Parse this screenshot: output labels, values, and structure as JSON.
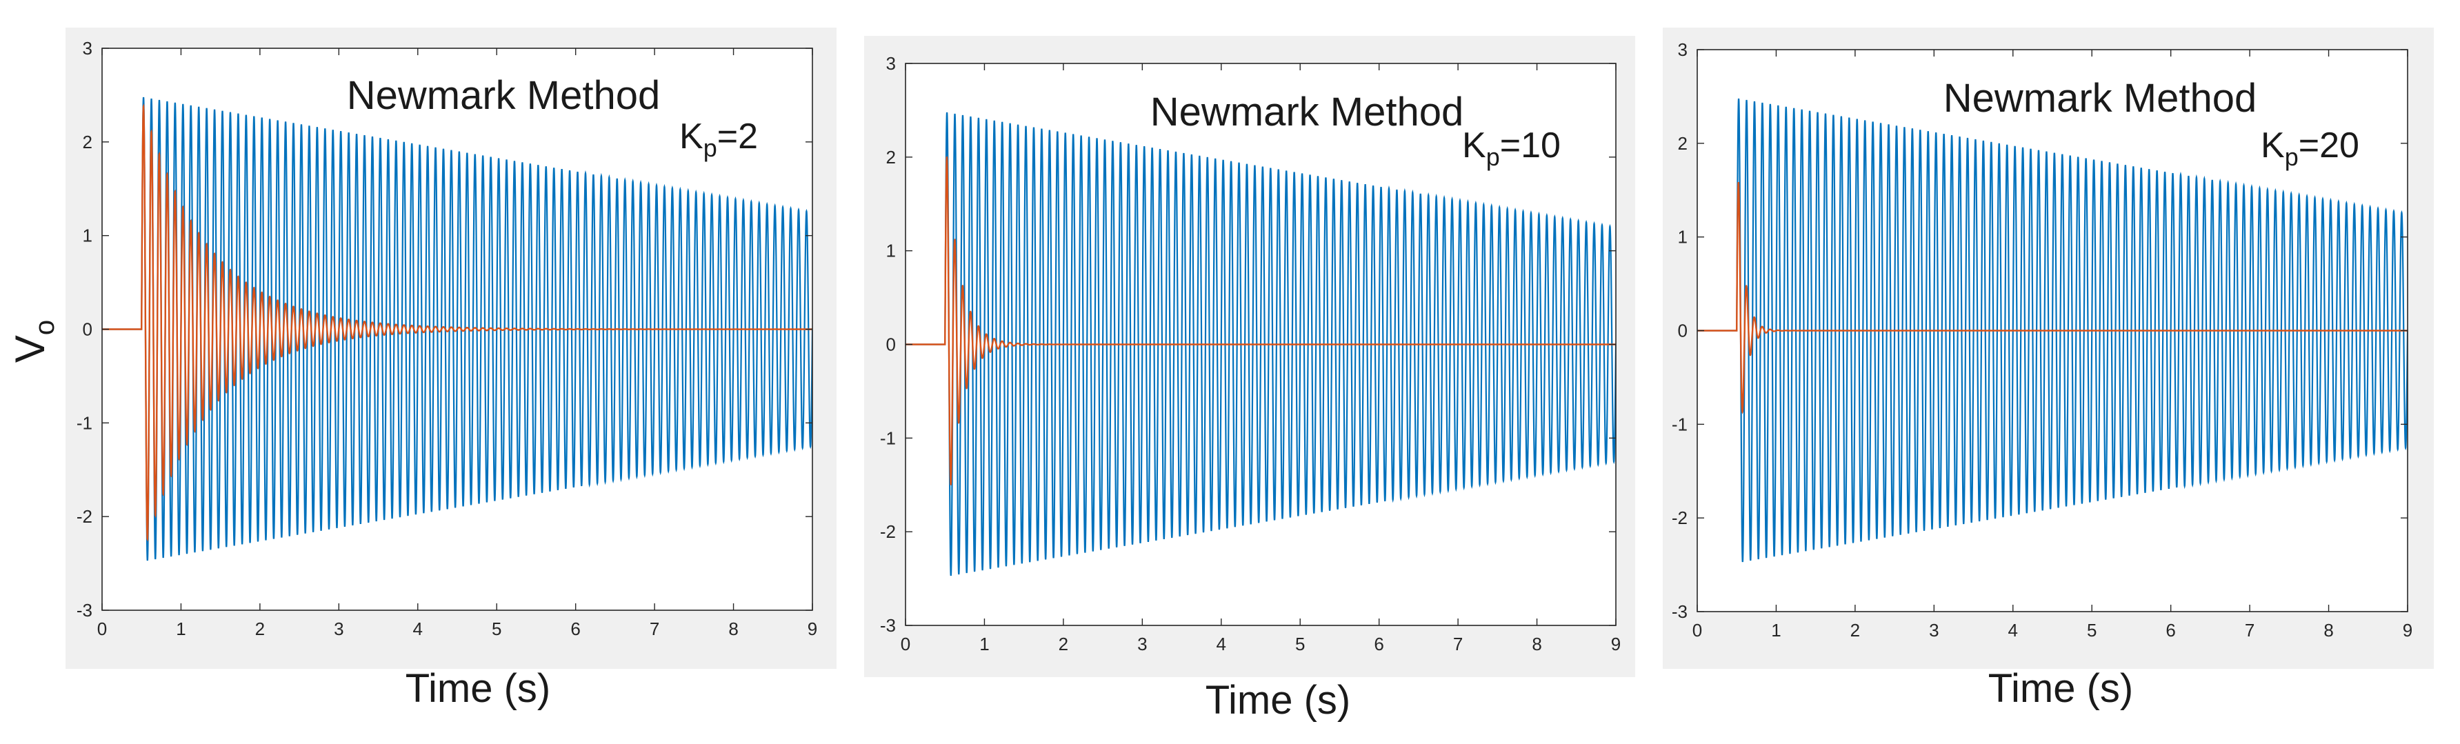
{
  "figure": {
    "ylabel": "V",
    "ylabel_sub": "o",
    "xlabel": "Time (s)"
  },
  "colors": {
    "undamped": "#0072BD",
    "damped": "#D95319",
    "panel_bg": "#F0F0F0"
  },
  "chart_data": [
    {
      "type": "line",
      "title": "Newmark Method",
      "annotation": {
        "main": "K",
        "sub": "p",
        "value": "=2"
      },
      "xlabel": "Time (s)",
      "ylabel": "Vo",
      "xlim": [
        0,
        9
      ],
      "ylim": [
        -3,
        3
      ],
      "xticks": [
        "0",
        "1",
        "2",
        "3",
        "4",
        "5",
        "6",
        "7",
        "8",
        "9"
      ],
      "yticks": [
        "-3",
        "-2",
        "-1",
        "0",
        "1",
        "2",
        "3"
      ],
      "series": [
        {
          "color": "undamped",
          "start": 0.5,
          "amplitude": 2.48,
          "end_amplitude": 1.25,
          "frequency": 10,
          "end": 9
        },
        {
          "color": "damped",
          "start": 0.5,
          "amplitude": 2.45,
          "decay_rate": 1.2,
          "frequency": 10,
          "end": 9
        }
      ]
    },
    {
      "type": "line",
      "title": "Newmark Method",
      "annotation": {
        "main": "K",
        "sub": "p",
        "value": "=10"
      },
      "xlabel": "Time (s)",
      "ylabel": "Vo",
      "xlim": [
        0,
        9
      ],
      "ylim": [
        -3,
        3
      ],
      "xticks": [
        "0",
        "1",
        "2",
        "3",
        "4",
        "5",
        "6",
        "7",
        "8",
        "9"
      ],
      "yticks": [
        "-3",
        "-2",
        "-1",
        "0",
        "1",
        "2",
        "3"
      ],
      "series": [
        {
          "color": "undamped",
          "start": 0.5,
          "amplitude": 2.48,
          "end_amplitude": 1.25,
          "frequency": 10,
          "end": 9
        },
        {
          "color": "damped",
          "start": 0.5,
          "amplitude": 2.3,
          "decay_rate": 5.8,
          "frequency": 10,
          "end": 9
        }
      ]
    },
    {
      "type": "line",
      "title": "Newmark Method",
      "annotation": {
        "main": "K",
        "sub": "p",
        "value": "=20"
      },
      "xlabel": "Time (s)",
      "ylabel": "Vo",
      "xlim": [
        0,
        9
      ],
      "ylim": [
        -3,
        3
      ],
      "xticks": [
        "0",
        "1",
        "2",
        "3",
        "4",
        "5",
        "6",
        "7",
        "8",
        "9"
      ],
      "yticks": [
        "-3",
        "-2",
        "-1",
        "0",
        "1",
        "2",
        "3"
      ],
      "series": [
        {
          "color": "undamped",
          "start": 0.5,
          "amplitude": 2.48,
          "end_amplitude": 1.25,
          "frequency": 10,
          "end": 9
        },
        {
          "color": "damped",
          "start": 0.5,
          "amplitude": 2.1,
          "decay_rate": 12,
          "frequency": 10,
          "end": 9
        }
      ]
    }
  ]
}
